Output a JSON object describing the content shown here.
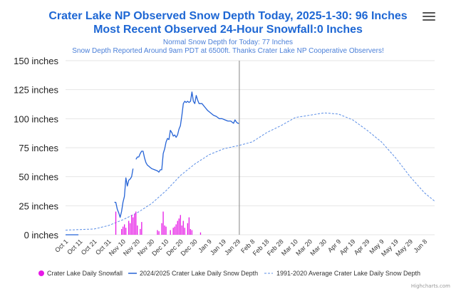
{
  "header": {
    "title_line1": "Crater Lake NP Observed Snow Depth Today, 2025-1-30: 96 Inches",
    "title_line2": "Most Recent Observed 24-Hour Snowfall:0 Inches",
    "subtitle_line1": "Normal Snow Depth for Today: 77 Inches",
    "subtitle_line2": "Snow Depth Reported Around 9am PDT at 6500ft. Thanks Crater Lake NP Cooperative Observers!"
  },
  "menu_icon": "hamburger-menu-icon",
  "credits": "Highcharts.com",
  "colors": {
    "title": "#1e67d4",
    "snowfall": "#e619e6",
    "depth": "#2563d6",
    "average": "#5b8ee6",
    "grid": "#e6e6e6",
    "plotline": "#999999"
  },
  "chart_data": {
    "type": "line",
    "x_type": "date",
    "xlim": [
      "2024-10-01",
      "2025-06-15"
    ],
    "ylim": [
      0,
      150
    ],
    "yticks": [
      0,
      25,
      50,
      75,
      100,
      125,
      150
    ],
    "ytick_labels": [
      "0 inches",
      "25 inches",
      "50 inches",
      "75 inches",
      "100 inches",
      "125 inches",
      "150 inches"
    ],
    "xtick_labels": [
      "Oct 1",
      "Oct 11",
      "Oct 21",
      "Oct 31",
      "Nov 10",
      "Nov 20",
      "Nov 30",
      "Dec 10",
      "Dec 20",
      "Dec 30",
      "Jan 9",
      "Jan 19",
      "Jan 29",
      "Feb 8",
      "Feb 18",
      "Feb 28",
      "Mar 10",
      "Mar 20",
      "Mar 30",
      "Apr 9",
      "Apr 19",
      "Apr 29",
      "May 9",
      "May 19",
      "May 29",
      "Jun 8"
    ],
    "xtick_dates": [
      "2024-10-01",
      "2024-10-11",
      "2024-10-21",
      "2024-10-31",
      "2024-11-10",
      "2024-11-20",
      "2024-11-30",
      "2024-12-10",
      "2024-12-20",
      "2024-12-30",
      "2025-01-09",
      "2025-01-19",
      "2025-01-29",
      "2025-02-08",
      "2025-02-18",
      "2025-02-28",
      "2025-03-10",
      "2025-03-20",
      "2025-03-30",
      "2025-04-09",
      "2025-04-19",
      "2025-04-29",
      "2025-05-09",
      "2025-05-19",
      "2025-05-29",
      "2025-06-08"
    ],
    "today_line": "2025-01-30",
    "grid": true,
    "legend_placement": "bottom",
    "series": [
      {
        "name": "Crater Lake Daily Snowfall",
        "kind": "column",
        "points": [
          [
            "2024-11-05",
            20
          ],
          [
            "2024-11-09",
            5
          ],
          [
            "2024-11-10",
            7
          ],
          [
            "2024-11-11",
            9
          ],
          [
            "2024-11-12",
            6
          ],
          [
            "2024-11-14",
            12
          ],
          [
            "2024-11-15",
            10
          ],
          [
            "2024-11-16",
            17
          ],
          [
            "2024-11-17",
            15
          ],
          [
            "2024-11-18",
            18
          ],
          [
            "2024-11-19",
            20
          ],
          [
            "2024-11-20",
            8
          ],
          [
            "2024-11-22",
            5
          ],
          [
            "2024-11-23",
            11
          ],
          [
            "2024-12-04",
            4
          ],
          [
            "2024-12-05",
            3
          ],
          [
            "2024-12-07",
            10
          ],
          [
            "2024-12-08",
            20
          ],
          [
            "2024-12-09",
            8
          ],
          [
            "2024-12-10",
            7
          ],
          [
            "2024-12-13",
            4
          ],
          [
            "2024-12-15",
            6
          ],
          [
            "2024-12-16",
            7
          ],
          [
            "2024-12-17",
            9
          ],
          [
            "2024-12-18",
            12
          ],
          [
            "2024-12-19",
            14
          ],
          [
            "2024-12-20",
            17
          ],
          [
            "2024-12-21",
            8
          ],
          [
            "2024-12-22",
            12
          ],
          [
            "2024-12-23",
            6
          ],
          [
            "2024-12-25",
            10
          ],
          [
            "2024-12-26",
            15
          ],
          [
            "2024-12-27",
            5
          ],
          [
            "2024-12-28",
            4
          ],
          [
            "2025-01-03",
            2
          ]
        ]
      },
      {
        "name": "2024/2025 Crater Lake Daily Snow Depth",
        "kind": "line",
        "segments": [
          [
            [
              "2024-10-01",
              0
            ],
            [
              "2024-10-10",
              0
            ]
          ],
          [
            [
              "2024-11-04",
              28
            ],
            [
              "2024-11-05",
              28
            ],
            [
              "2024-11-06",
              22
            ],
            [
              "2024-11-07",
              19
            ],
            [
              "2024-11-08",
              15
            ],
            [
              "2024-11-09",
              20
            ],
            [
              "2024-11-10",
              28
            ],
            [
              "2024-11-11",
              33
            ],
            [
              "2024-11-12",
              49
            ],
            [
              "2024-11-13",
              42
            ],
            [
              "2024-11-14",
              47
            ],
            [
              "2024-11-15",
              48
            ],
            [
              "2024-11-16",
              50
            ],
            [
              "2024-11-17",
              57
            ]
          ],
          [
            [
              "2024-11-19",
              65
            ],
            [
              "2024-11-20",
              67
            ],
            [
              "2024-11-21",
              67
            ],
            [
              "2024-11-22",
              70
            ],
            [
              "2024-11-23",
              72
            ],
            [
              "2024-11-24",
              72
            ],
            [
              "2024-11-25",
              66
            ],
            [
              "2024-11-26",
              62
            ],
            [
              "2024-11-27",
              60
            ],
            [
              "2024-11-28",
              59
            ],
            [
              "2024-11-29",
              58
            ],
            [
              "2024-11-30",
              57
            ],
            [
              "2024-12-02",
              56
            ],
            [
              "2024-12-04",
              55
            ],
            [
              "2024-12-05",
              54
            ],
            [
              "2024-12-06",
              56
            ],
            [
              "2024-12-07",
              56
            ],
            [
              "2024-12-08",
              70
            ],
            [
              "2024-12-09",
              74
            ],
            [
              "2024-12-10",
              80
            ],
            [
              "2024-12-11",
              83
            ],
            [
              "2024-12-12",
              82
            ],
            [
              "2024-12-13",
              90
            ],
            [
              "2024-12-14",
              88
            ],
            [
              "2024-12-15",
              85
            ],
            [
              "2024-12-16",
              86
            ],
            [
              "2024-12-17",
              84
            ],
            [
              "2024-12-18",
              86
            ],
            [
              "2024-12-19",
              91
            ],
            [
              "2024-12-20",
              94
            ],
            [
              "2024-12-21",
              103
            ],
            [
              "2024-12-22",
              113
            ],
            [
              "2024-12-23",
              115
            ],
            [
              "2024-12-24",
              114
            ],
            [
              "2024-12-25",
              115
            ],
            [
              "2024-12-26",
              114
            ],
            [
              "2024-12-27",
              115
            ],
            [
              "2024-12-28",
              123
            ],
            [
              "2024-12-29",
              115
            ],
            [
              "2024-12-30",
              113
            ],
            [
              "2024-12-31",
              120
            ],
            [
              "2025-01-01",
              116
            ],
            [
              "2025-01-02",
              113
            ],
            [
              "2025-01-04",
              113
            ],
            [
              "2025-01-06",
              110
            ],
            [
              "2025-01-08",
              107
            ],
            [
              "2025-01-10",
              105
            ],
            [
              "2025-01-12",
              103
            ],
            [
              "2025-01-14",
              102
            ],
            [
              "2025-01-16",
              100
            ],
            [
              "2025-01-18",
              100
            ],
            [
              "2025-01-20",
              99
            ],
            [
              "2025-01-22",
              98
            ],
            [
              "2025-01-24",
              98
            ],
            [
              "2025-01-26",
              96
            ],
            [
              "2025-01-27",
              99
            ],
            [
              "2025-01-28",
              97
            ],
            [
              "2025-01-29",
              96
            ],
            [
              "2025-01-30",
              96
            ]
          ]
        ]
      },
      {
        "name": "1991-2020 Average Crater Lake Daily Snow Depth",
        "kind": "dashed-line",
        "points": [
          [
            "2024-10-01",
            4
          ],
          [
            "2024-10-21",
            5
          ],
          [
            "2024-10-31",
            8
          ],
          [
            "2024-11-10",
            13
          ],
          [
            "2024-11-20",
            19
          ],
          [
            "2024-11-30",
            27
          ],
          [
            "2024-12-10",
            38
          ],
          [
            "2024-12-20",
            51
          ],
          [
            "2024-12-30",
            61
          ],
          [
            "2025-01-09",
            69
          ],
          [
            "2025-01-19",
            74
          ],
          [
            "2025-01-30",
            77
          ],
          [
            "2025-02-08",
            80
          ],
          [
            "2025-02-18",
            88
          ],
          [
            "2025-02-28",
            94
          ],
          [
            "2025-03-10",
            101
          ],
          [
            "2025-03-20",
            103
          ],
          [
            "2025-03-30",
            105
          ],
          [
            "2025-04-09",
            104
          ],
          [
            "2025-04-19",
            99
          ],
          [
            "2025-04-29",
            90
          ],
          [
            "2025-05-09",
            80
          ],
          [
            "2025-05-19",
            66
          ],
          [
            "2025-05-29",
            50
          ],
          [
            "2025-06-08",
            36
          ],
          [
            "2025-06-15",
            29
          ]
        ]
      }
    ]
  }
}
